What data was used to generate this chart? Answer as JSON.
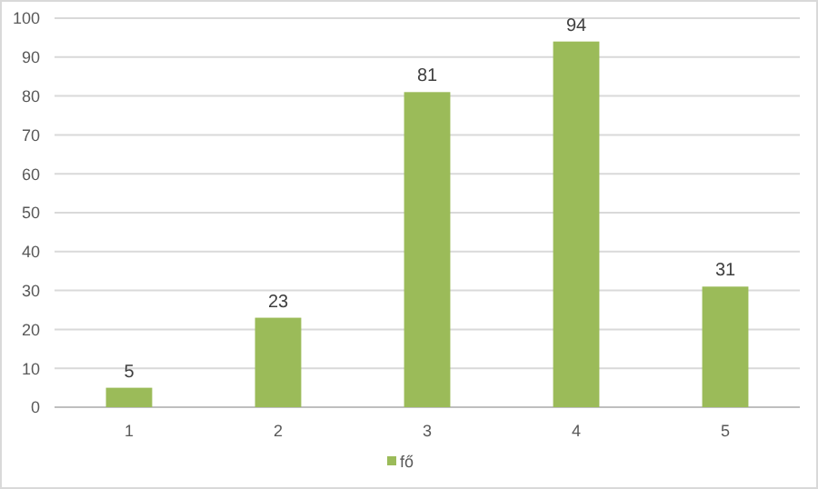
{
  "chart_data": {
    "type": "bar",
    "categories": [
      "1",
      "2",
      "3",
      "4",
      "5"
    ],
    "series": [
      {
        "name": "fő",
        "color": "#9bbb59",
        "values": [
          5,
          23,
          81,
          94,
          31
        ]
      }
    ],
    "ylim": [
      0,
      100
    ],
    "yticks": [
      0,
      10,
      20,
      30,
      40,
      50,
      60,
      70,
      80,
      90,
      100
    ],
    "grid": "y",
    "data_labels": true,
    "legend": "bottom"
  }
}
